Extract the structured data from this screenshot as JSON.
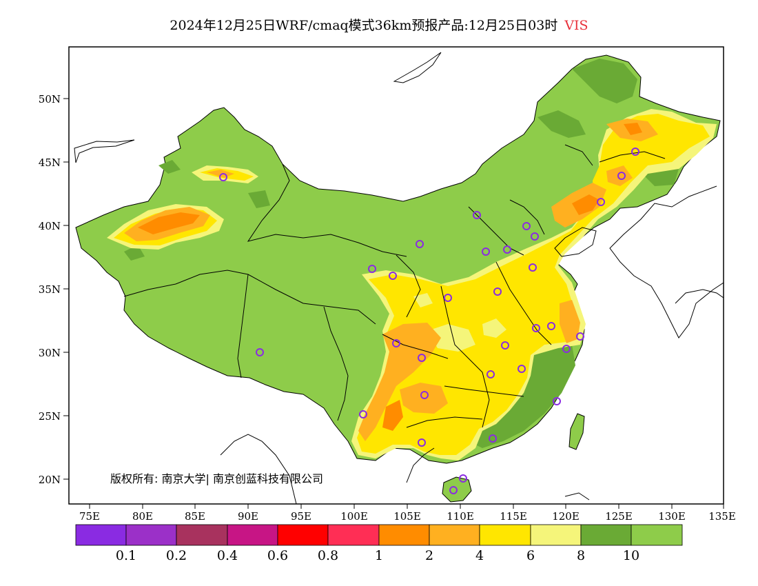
{
  "header": {
    "title": "2024年12月25日WRF/cmaq模式36km预报产品:12月25日03时",
    "variable": "VIS"
  },
  "map": {
    "lat_ticks": [
      "50N",
      "45N",
      "40N",
      "35N",
      "30N",
      "25N",
      "20N"
    ],
    "lon_ticks": [
      "75E",
      "80E",
      "85E",
      "90E",
      "95E",
      "100E",
      "105E",
      "110E",
      "115E",
      "120E",
      "125E",
      "130E",
      "135E"
    ],
    "copyright": "版权所有: 南京大学| 南京创蓝科技有限公司",
    "marker_color": "#8a2be2"
  },
  "legend": {
    "colors": [
      "#8a2be2",
      "#9b30c8",
      "#a8325e",
      "#c71585",
      "#ff0000",
      "#ff2e55",
      "#ff8c00",
      "#ffb020",
      "#ffe600",
      "#f5f57a",
      "#6aaa35",
      "#8ecc4a"
    ],
    "labels": [
      "0.1",
      "0.2",
      "0.4",
      "0.6",
      "0.8",
      "1",
      "2",
      "4",
      "6",
      "8",
      "10"
    ]
  }
}
